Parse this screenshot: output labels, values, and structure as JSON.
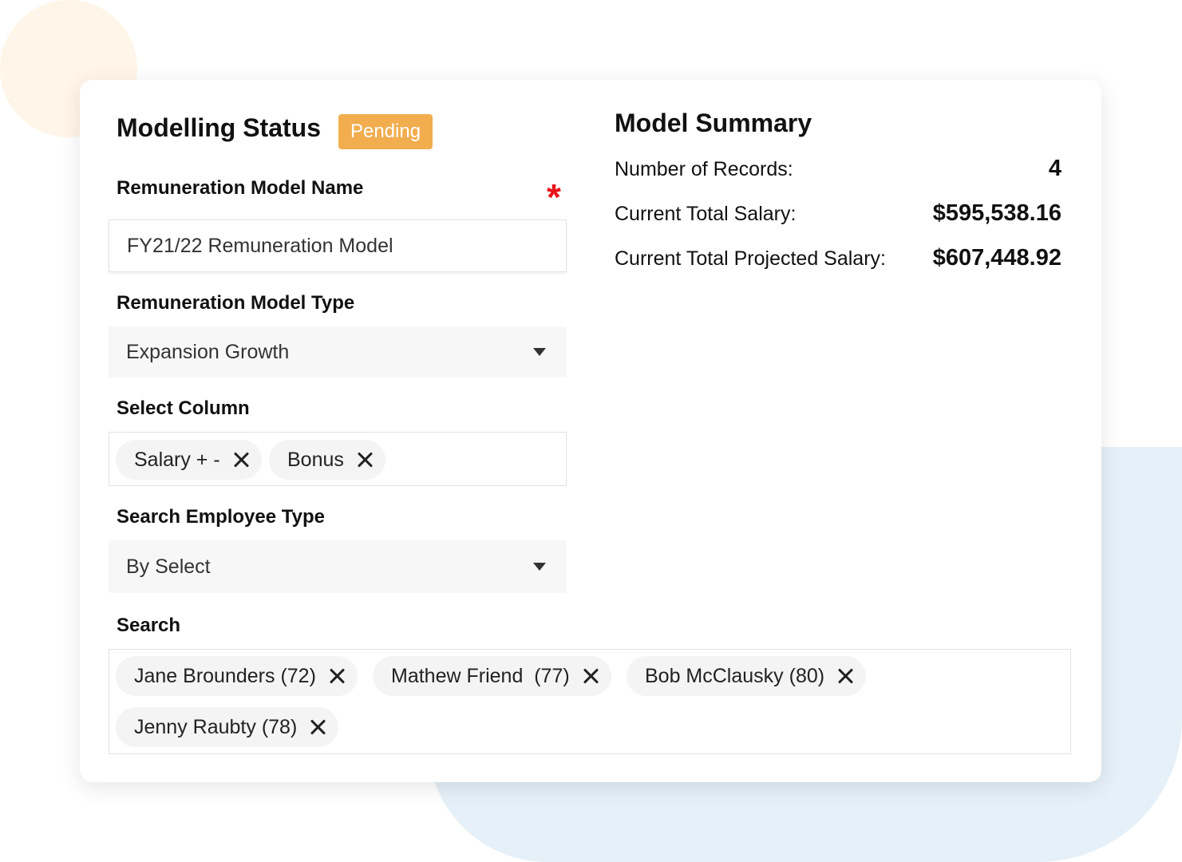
{
  "status": {
    "title": "Modelling Status",
    "badge": "Pending",
    "badge_color": "#f1ad4e"
  },
  "model_name": {
    "label": "Remuneration Model Name",
    "required_mark": "*",
    "value": "FY21/22 Remuneration Model"
  },
  "model_type": {
    "label": "Remuneration Model Type",
    "selected": "Expansion Growth"
  },
  "select_column": {
    "label": "Select Column",
    "tags": [
      "Salary + -",
      "Bonus"
    ]
  },
  "employee_type": {
    "label": "Search Employee Type",
    "selected": "By Select"
  },
  "search": {
    "label": "Search",
    "tags": [
      "Jane Brounders (72)",
      "Mathew Friend  (77)",
      "Bob McClausky (80)",
      "Jenny Raubty (78)"
    ]
  },
  "summary": {
    "title": "Model Summary",
    "rows": [
      {
        "label": "Number of Records:",
        "value": "4"
      },
      {
        "label": "Current Total Salary:",
        "value": "$595,538.16"
      },
      {
        "label": "Current Total Projected Salary:",
        "value": "$607,448.92"
      }
    ]
  },
  "theme": {
    "required_color": "#e8141b",
    "accent_blob": "#e5f0f8",
    "accent_circle": "#fff5e8"
  }
}
